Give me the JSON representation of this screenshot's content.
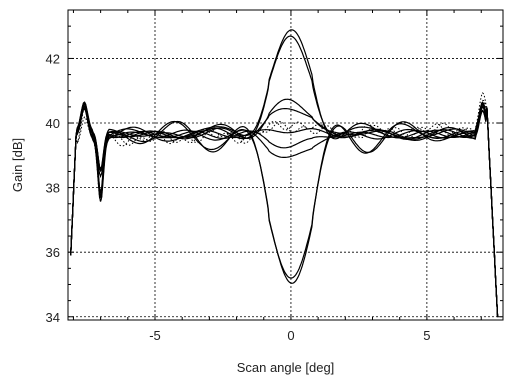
{
  "chart_data": {
    "type": "line",
    "title": "",
    "xlabel": "Scan angle [deg]",
    "ylabel": "Gain [dB]",
    "xlim": [
      -8.2,
      7.8
    ],
    "ylim": [
      33.9,
      43.5
    ],
    "xticks": [
      -5,
      0,
      5
    ],
    "xtick_labels": [
      "-5",
      "0",
      "5"
    ],
    "yticks": [
      34,
      36,
      38,
      40,
      42
    ],
    "ytick_labels": [
      "34",
      "36",
      "38",
      "40",
      "42"
    ],
    "grid": true,
    "grid_style": "dotted",
    "legend": "none",
    "series": [
      {
        "style": "solid",
        "peak_at_0": 42.8
      },
      {
        "style": "solid",
        "peak_at_0": 42.6
      },
      {
        "style": "solid",
        "peak_at_0": 40.7
      },
      {
        "style": "solid",
        "peak_at_0": 40.5
      },
      {
        "style": "solid",
        "peak_at_0": 39.8
      },
      {
        "style": "solid",
        "peak_at_0": 39.3
      },
      {
        "style": "solid",
        "peak_at_0": 38.9
      },
      {
        "style": "solid",
        "peak_at_0": 35.1
      },
      {
        "style": "solid",
        "peak_at_0": 35.0
      },
      {
        "style": "dotted",
        "peak_at_0": 39.9
      },
      {
        "style": "dotted",
        "peak_at_0": 40.0
      }
    ]
  }
}
